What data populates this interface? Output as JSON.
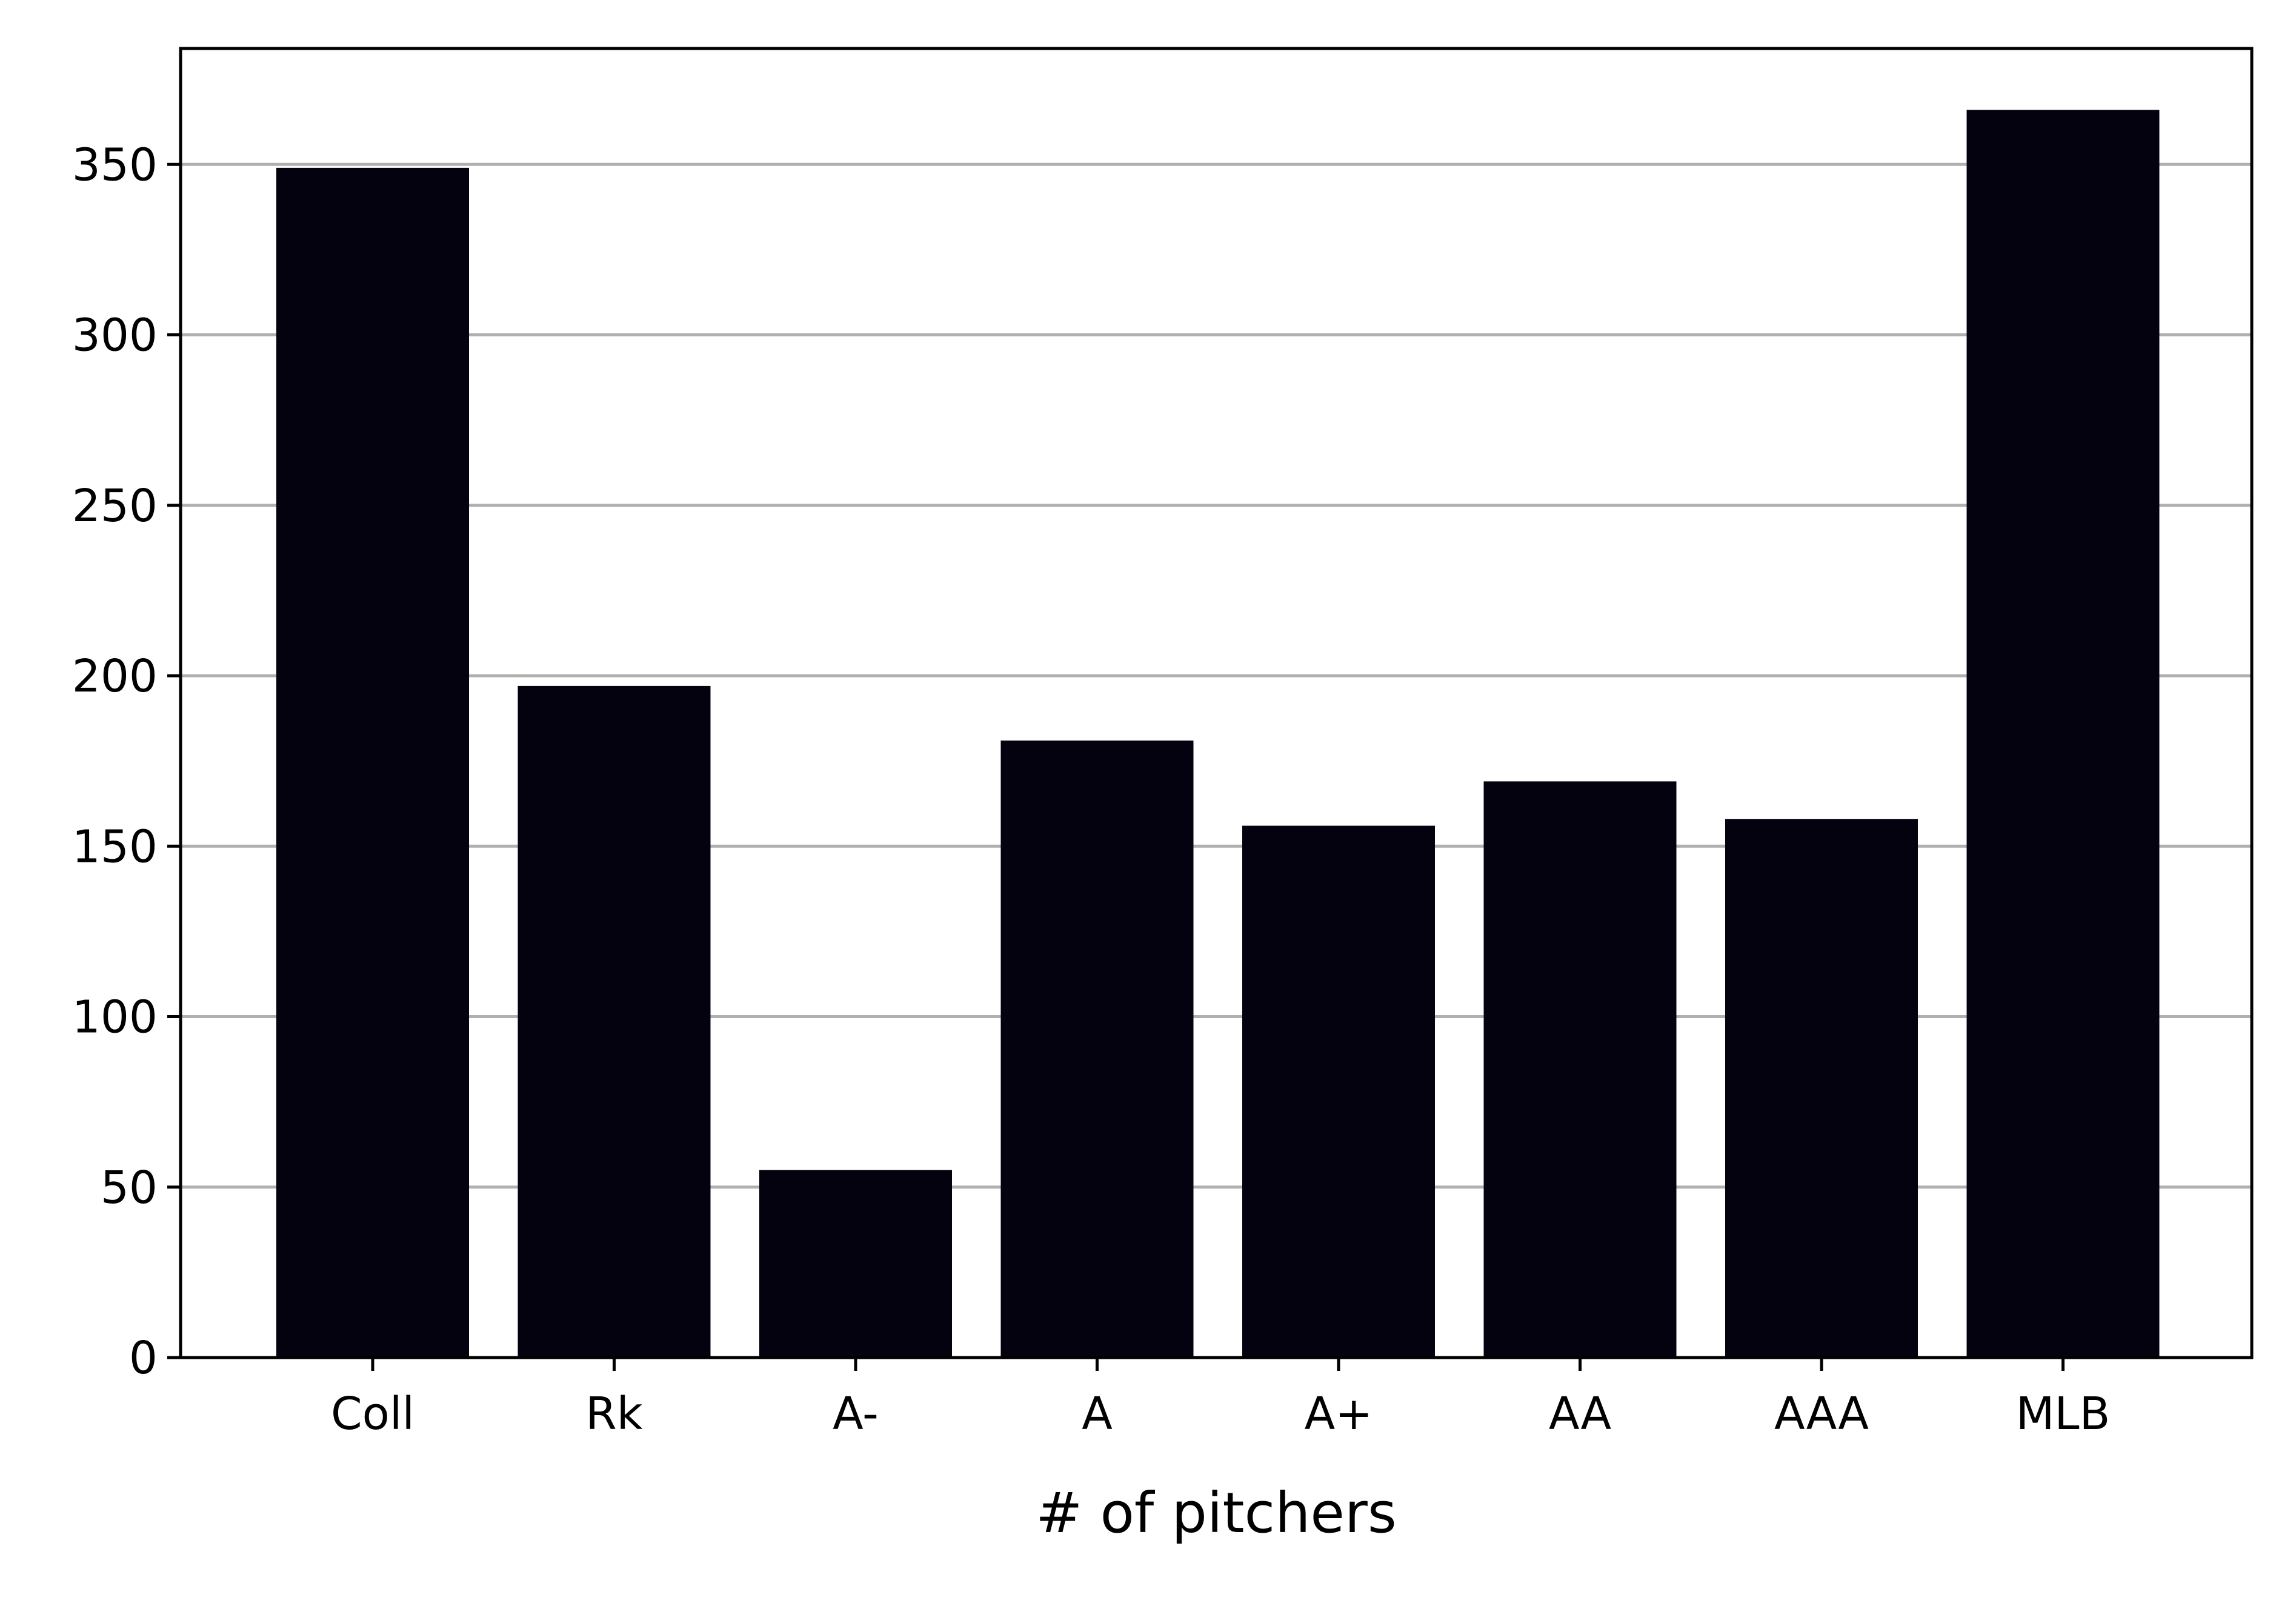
{
  "chart_data": {
    "type": "bar",
    "title": "",
    "xlabel": "# of pitchers",
    "ylabel": "",
    "categories": [
      "Coll",
      "Rk",
      "A-",
      "A",
      "A+",
      "AA",
      "AAA",
      "MLB"
    ],
    "values": [
      349,
      197,
      55,
      181,
      156,
      169,
      158,
      366
    ],
    "ylim": [
      0,
      384
    ],
    "yticks": [
      0,
      50,
      100,
      150,
      200,
      250,
      300,
      350
    ],
    "grid": "horizontal",
    "colors": {
      "bar": "#050210",
      "grid": "#b0b0b0",
      "axis": "#000000",
      "text": "#000000"
    }
  }
}
